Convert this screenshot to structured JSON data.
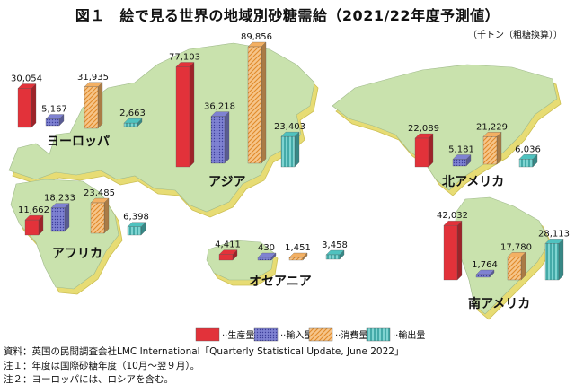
{
  "title": "図１　絵で見る世界の地域別砂糖需給（2021/22年度予測値）",
  "unit": "（千トン（粗糖換算））",
  "notes": {
    "source": "資料：英国の民間調査会社LMC International「Quarterly Statistical Update, June 2022」",
    "note1": "注１：年度は国際砂糖年度（10月～翌９月）。",
    "note2": "注２：ヨーロッパには、ロシアを含む。"
  },
  "colors": {
    "land": "#c9e2ad",
    "land_side": "#e7dc74",
    "land_edge": "#d2c55a",
    "production": "#e2323a",
    "imports": "#7f82d2",
    "consumption": "#f3b063",
    "exports": "#4fc2bf"
  },
  "chart_data": {
    "type": "bar",
    "series": [
      {
        "name": "生産量"
      },
      {
        "name": "輸入量"
      },
      {
        "name": "消費量"
      },
      {
        "name": "輸出量"
      }
    ],
    "legend": {
      "position": "bottom",
      "labels": [
        "生産量",
        "輸入量",
        "消費量",
        "輸出量"
      ]
    },
    "regions": [
      {
        "name": "ヨーロッパ",
        "values": [
          30054,
          5167,
          31935,
          2663
        ],
        "labels": [
          "30,054",
          "5,167",
          "31,935",
          "2,663"
        ]
      },
      {
        "name": "アフリカ",
        "values": [
          11662,
          18233,
          23485,
          6398
        ],
        "labels": [
          "11,662",
          "18,233",
          "23,485",
          "6,398"
        ]
      },
      {
        "name": "アジア",
        "values": [
          77103,
          36218,
          89856,
          23403
        ],
        "labels": [
          "77,103",
          "36,218",
          "89,856",
          "23,403"
        ]
      },
      {
        "name": "オセアニア",
        "values": [
          4411,
          430,
          1451,
          3458
        ],
        "labels": [
          "4,411",
          "430",
          "1,451",
          "3,458"
        ]
      },
      {
        "name": "北アメリカ",
        "values": [
          22089,
          5181,
          21229,
          6036
        ],
        "labels": [
          "22,089",
          "5,181",
          "21,229",
          "6,036"
        ]
      },
      {
        "name": "南アメリカ",
        "values": [
          42032,
          1764,
          17780,
          28113
        ],
        "labels": [
          "42,032",
          "1,764",
          "17,780",
          "28,113"
        ]
      }
    ]
  }
}
